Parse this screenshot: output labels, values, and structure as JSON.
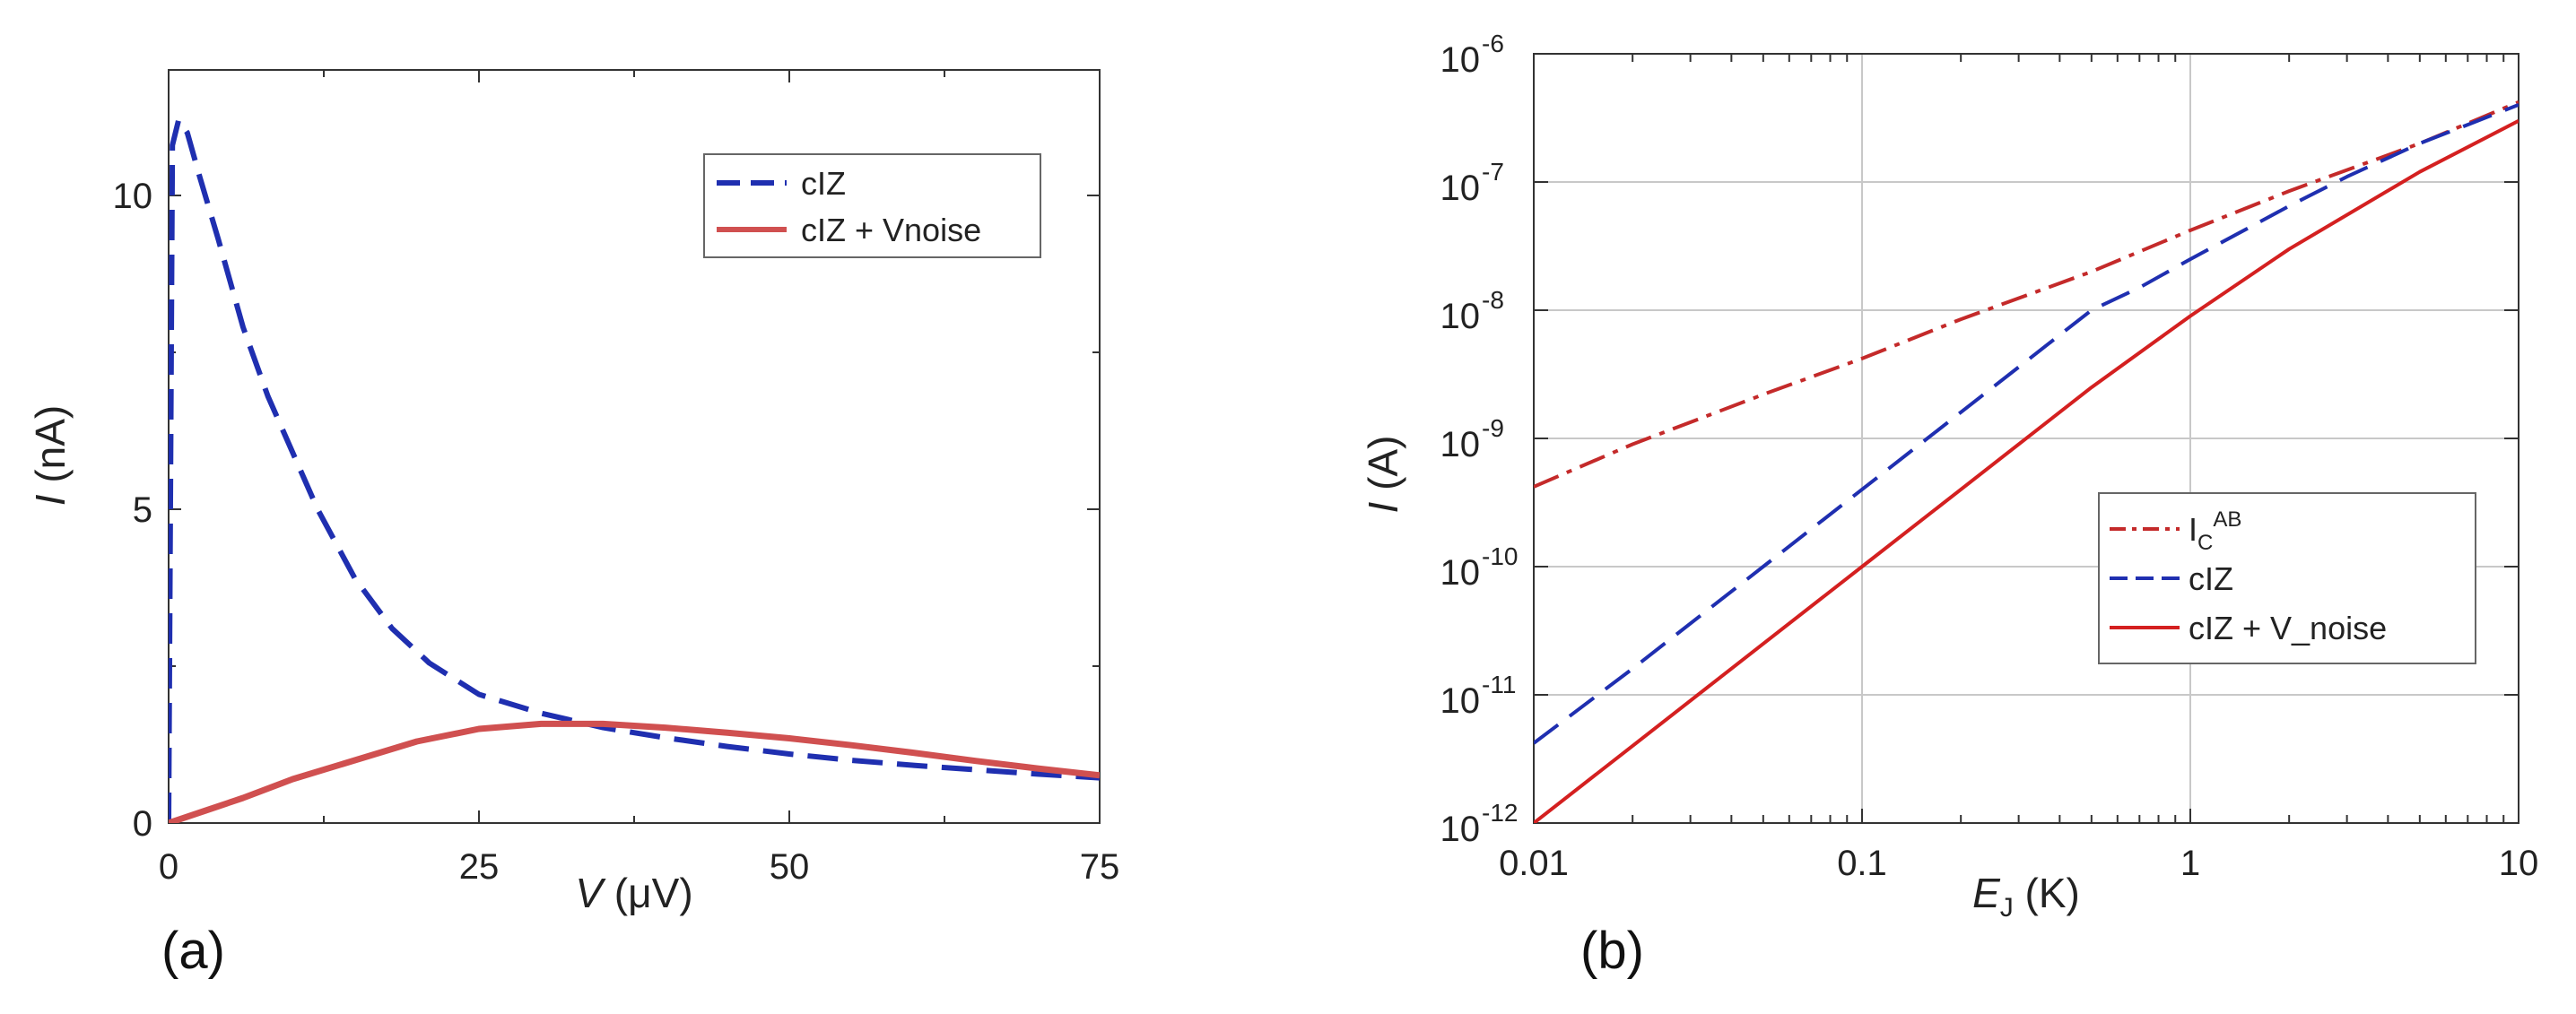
{
  "chart_data": [
    {
      "type": "line",
      "panel_label": "(a)",
      "xlabel_var": "V",
      "xlabel_unit": "(μV)",
      "ylabel_var": "I",
      "ylabel_unit": "(nA)",
      "xlim": [
        0,
        75
      ],
      "ylim": [
        0,
        12
      ],
      "x_ticks": [
        0,
        25,
        50,
        75
      ],
      "x_tick_labels": [
        "0",
        "25",
        "50",
        "75"
      ],
      "y_ticks": [
        0,
        5,
        10
      ],
      "y_tick_labels": [
        "0",
        "5",
        "10"
      ],
      "grid": false,
      "legend_position": "top-right",
      "series": [
        {
          "name": "cIZ",
          "color": "#1f2fb0",
          "style": "dashed",
          "x": [
            0,
            0.3,
            0.8,
            1.5,
            2.5,
            4,
            6,
            8,
            10,
            12,
            15,
            18,
            21,
            25,
            30,
            35,
            40,
            45,
            50,
            55,
            60,
            65,
            70,
            75
          ],
          "y": [
            0,
            10.8,
            11.2,
            11.0,
            10.3,
            9.3,
            7.9,
            6.8,
            5.9,
            5.0,
            3.9,
            3.1,
            2.55,
            2.05,
            1.75,
            1.52,
            1.36,
            1.22,
            1.1,
            1.0,
            0.92,
            0.85,
            0.78,
            0.72
          ]
        },
        {
          "name": "cIZ + Vnoise",
          "color": "#d05050",
          "style": "solid",
          "x": [
            0,
            3,
            6,
            10,
            15,
            20,
            25,
            30,
            35,
            40,
            45,
            50,
            55,
            60,
            65,
            70,
            75
          ],
          "y": [
            0,
            0.2,
            0.4,
            0.7,
            1.0,
            1.3,
            1.5,
            1.58,
            1.58,
            1.52,
            1.44,
            1.35,
            1.24,
            1.12,
            0.99,
            0.87,
            0.76
          ]
        }
      ]
    },
    {
      "type": "line",
      "panel_label": "(b)",
      "xscale": "log",
      "yscale": "log",
      "xlabel_var": "E",
      "xlabel_sub": "J",
      "xlabel_unit": "(K)",
      "ylabel_var": "I",
      "ylabel_unit": "(A)",
      "xlim": [
        0.01,
        10
      ],
      "ylim": [
        1e-12,
        1e-06
      ],
      "x_ticks": [
        0.01,
        0.1,
        1,
        10
      ],
      "x_tick_labels": [
        "0.01",
        "0.1",
        "1",
        "10"
      ],
      "y_tick_exponents": [
        -12,
        -11,
        -10,
        -9,
        -8,
        -7,
        -6
      ],
      "y_tick_base": "10",
      "grid": true,
      "legend_position": "lower-right",
      "series": [
        {
          "name": "I",
          "name_sub": "C",
          "name_sup": "AB",
          "color": "#c42a2a",
          "style": "dashdot",
          "x": [
            0.01,
            0.02,
            0.05,
            0.1,
            0.2,
            0.5,
            1,
            2,
            5,
            10
          ],
          "y": [
            4.2e-10,
            9e-10,
            2.2e-09,
            4.2e-09,
            8.5e-09,
            2e-08,
            4.2e-08,
            8.5e-08,
            2e-07,
            4.2e-07
          ]
        },
        {
          "name": "cIZ",
          "color": "#1f2fb0",
          "style": "dashed",
          "x": [
            0.01,
            0.02,
            0.05,
            0.1,
            0.2,
            0.5,
            0.7,
            1,
            2,
            3,
            5,
            10
          ],
          "y": [
            4.2e-12,
            1.6e-11,
            1e-10,
            4e-10,
            1.6e-09,
            1e-08,
            1.5e-08,
            2.5e-08,
            6.5e-08,
            1.1e-07,
            2e-07,
            4e-07
          ]
        },
        {
          "name": "cIZ + V_noise",
          "color": "#d42020",
          "style": "solid",
          "x": [
            0.01,
            0.02,
            0.05,
            0.1,
            0.2,
            0.5,
            1,
            2,
            5,
            10
          ],
          "y": [
            1e-12,
            4e-12,
            2.5e-11,
            1e-10,
            4e-10,
            2.5e-09,
            9e-09,
            3e-08,
            1.2e-07,
            3e-07
          ]
        }
      ]
    }
  ]
}
